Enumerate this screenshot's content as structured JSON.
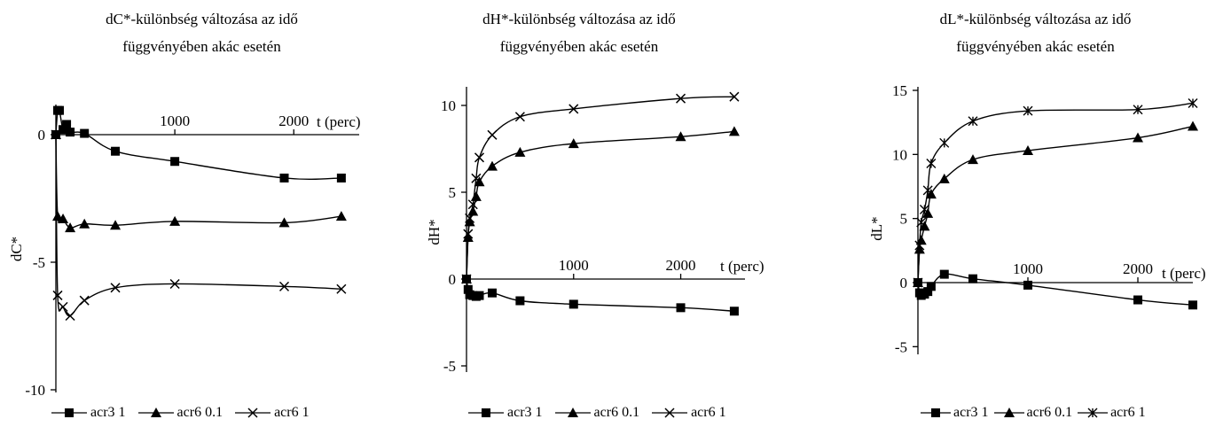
{
  "chart_data": [
    {
      "type": "line",
      "title": "dC*-különbség változása az idő függvényében akác esetén",
      "xlabel": "t (perc)",
      "ylabel": "dC*",
      "xticks": [
        1000,
        2000
      ],
      "yticks": [
        0,
        -5,
        -10
      ],
      "xlim": [
        0,
        2550
      ],
      "ylim": [
        -10,
        2
      ],
      "series": [
        {
          "name": "acr3 1",
          "marker": "square",
          "x": [
            0,
            15,
            30,
            60,
            90,
            120,
            240,
            500,
            1000,
            1920,
            2400
          ],
          "y": [
            0,
            0.95,
            0.95,
            0.2,
            0.4,
            0.1,
            0.05,
            -0.65,
            -1.05,
            -1.7,
            -1.7
          ]
        },
        {
          "name": "acr6 0.1",
          "marker": "triangle",
          "x": [
            0,
            15,
            60,
            120,
            240,
            500,
            1000,
            1920,
            2400
          ],
          "y": [
            0,
            -3.2,
            -3.3,
            -3.65,
            -3.5,
            -3.55,
            -3.4,
            -3.45,
            -3.2
          ]
        },
        {
          "name": "acr6 1",
          "marker": "x",
          "x": [
            0,
            15,
            60,
            120,
            240,
            500,
            1000,
            1920,
            2400
          ],
          "y": [
            0,
            -6.3,
            -6.75,
            -7.1,
            -6.5,
            -6.0,
            -5.85,
            -5.95,
            -6.05
          ]
        }
      ]
    },
    {
      "type": "line",
      "title": "dH*-különbség változása az idő függvényében akác esetén",
      "xlabel": "t (perc)",
      "ylabel": "dH*",
      "xticks": [
        1000,
        2000
      ],
      "yticks": [
        10,
        5,
        0,
        -5
      ],
      "xlim": [
        0,
        2600
      ],
      "ylim": [
        -5,
        11
      ],
      "series": [
        {
          "name": "acr3 1",
          "marker": "square",
          "x": [
            0,
            15,
            30,
            60,
            90,
            120,
            240,
            500,
            1000,
            2000,
            2500
          ],
          "y": [
            0,
            -0.6,
            -0.9,
            -0.95,
            -1.0,
            -0.95,
            -0.8,
            -1.25,
            -1.45,
            -1.65,
            -1.85
          ]
        },
        {
          "name": "acr6 0.1",
          "marker": "triangle",
          "x": [
            0,
            15,
            30,
            60,
            90,
            120,
            240,
            500,
            1000,
            2000,
            2500
          ],
          "y": [
            0,
            2.4,
            3.3,
            3.9,
            4.75,
            5.6,
            6.5,
            7.3,
            7.8,
            8.2,
            8.5
          ]
        },
        {
          "name": "acr6 1",
          "marker": "x",
          "x": [
            0,
            15,
            30,
            60,
            90,
            120,
            240,
            500,
            1000,
            2000,
            2500
          ],
          "y": [
            0,
            2.6,
            3.5,
            4.3,
            5.8,
            7.0,
            8.3,
            9.35,
            9.8,
            10.4,
            10.5
          ]
        }
      ]
    },
    {
      "type": "line",
      "title": "dL*-különbség változása az idő függvényében akác esetén",
      "xlabel": "t (perc)",
      "ylabel": "dL*",
      "xticks": [
        1000,
        2000
      ],
      "yticks": [
        15,
        10,
        5,
        0,
        -5
      ],
      "xlim": [
        0,
        2500
      ],
      "ylim": [
        -5,
        15
      ],
      "series": [
        {
          "name": "acr3 1",
          "marker": "square",
          "x": [
            0,
            15,
            30,
            60,
            90,
            120,
            240,
            500,
            1000,
            2000,
            2500
          ],
          "y": [
            0,
            -0.8,
            -1.0,
            -0.9,
            -0.7,
            -0.3,
            0.65,
            0.3,
            -0.2,
            -1.35,
            -1.75
          ]
        },
        {
          "name": "acr6 0.1",
          "marker": "triangle",
          "x": [
            0,
            15,
            30,
            60,
            90,
            120,
            240,
            500,
            1000,
            2000,
            2500
          ],
          "y": [
            0,
            2.6,
            3.3,
            4.4,
            5.4,
            6.9,
            8.1,
            9.6,
            10.3,
            11.3,
            12.2
          ]
        },
        {
          "name": "acr6 1",
          "marker": "x",
          "x": [
            0,
            15,
            30,
            60,
            90,
            120,
            240,
            500,
            1000,
            2000,
            2500
          ],
          "y": [
            0,
            2.9,
            4.7,
            5.7,
            7.2,
            9.3,
            10.9,
            12.6,
            13.4,
            13.5,
            14.0
          ]
        }
      ]
    }
  ]
}
